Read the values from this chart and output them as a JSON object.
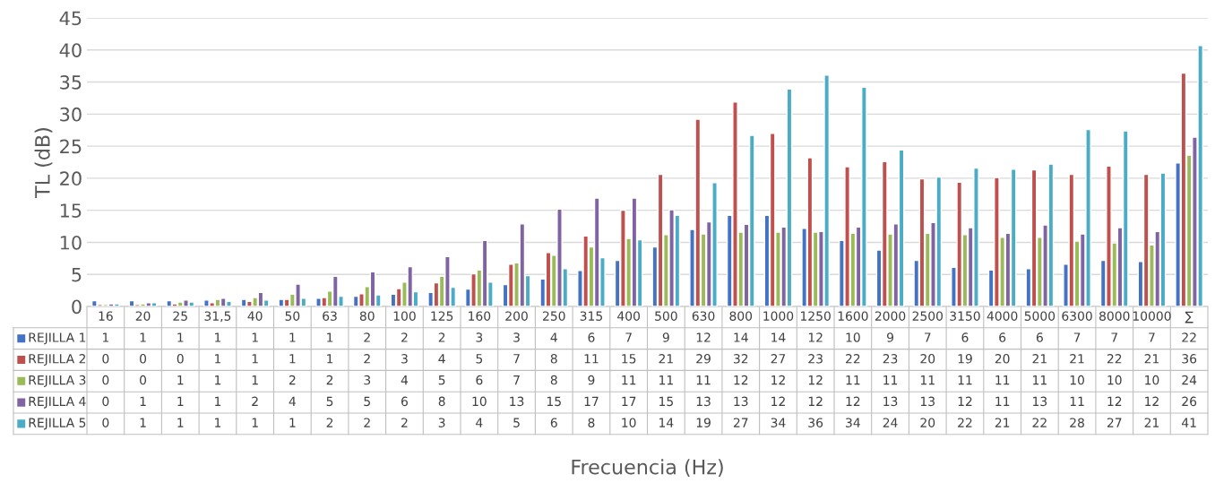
{
  "chart_data": {
    "type": "bar",
    "ylabel": "TL (dB)",
    "annotations": [
      "Frecuencia (Hz)"
    ],
    "categories": [
      "16",
      "20",
      "25",
      "31,5",
      "40",
      "50",
      "63",
      "80",
      "100",
      "125",
      "160",
      "200",
      "250",
      "315",
      "400",
      "500",
      "630",
      "800",
      "1000",
      "1250",
      "1600",
      "2000",
      "2500",
      "3150",
      "4000",
      "5000",
      "6300",
      "8000",
      "10000",
      "∑"
    ],
    "series": [
      {
        "name": "REJILLA 1",
        "color": "#4472c4",
        "values": [
          0.9,
          0.9,
          0.9,
          1.0,
          1.1,
          1.1,
          1.3,
          1.6,
          1.9,
          2.2,
          2.7,
          3.4,
          4.3,
          5.6,
          7.2,
          9.3,
          12.0,
          14.2,
          14.2,
          12.2,
          10.3,
          8.8,
          7.2,
          6.1,
          5.7,
          5.9,
          6.6,
          7.2,
          7.0,
          22.4
        ],
        "value_labels": [
          "1",
          "1",
          "1",
          "1",
          "1",
          "1",
          "1",
          "2",
          "2",
          "2",
          "3",
          "3",
          "4",
          "6",
          "7",
          "9",
          "12",
          "14",
          "14",
          "12",
          "10",
          "9",
          "7",
          "6",
          "6",
          "6",
          "7",
          "7",
          "7",
          "22"
        ]
      },
      {
        "name": "REJILLA 2",
        "color": "#c0504d",
        "values": [
          0.3,
          0.3,
          0.4,
          0.6,
          0.8,
          1.1,
          1.4,
          2.0,
          2.8,
          3.7,
          5.1,
          6.6,
          8.4,
          11.0,
          15.0,
          20.6,
          29.2,
          31.9,
          27.0,
          23.2,
          21.8,
          22.6,
          19.9,
          19.4,
          20.1,
          21.3,
          20.6,
          21.9,
          20.6,
          36.4
        ],
        "value_labels": [
          "0",
          "0",
          "0",
          "1",
          "1",
          "1",
          "1",
          "2",
          "3",
          "4",
          "5",
          "7",
          "8",
          "11",
          "15",
          "21",
          "29",
          "32",
          "27",
          "23",
          "22",
          "23",
          "20",
          "19",
          "20",
          "21",
          "21",
          "22",
          "21",
          "36"
        ]
      },
      {
        "name": "REJILLA 3",
        "color": "#9bbb59",
        "values": [
          0.3,
          0.4,
          0.7,
          1.1,
          1.4,
          1.9,
          2.4,
          3.1,
          3.8,
          4.7,
          5.7,
          6.8,
          8.0,
          9.3,
          10.6,
          11.2,
          11.3,
          11.6,
          11.6,
          11.6,
          11.4,
          11.3,
          11.4,
          11.2,
          10.8,
          10.8,
          10.2,
          9.9,
          9.6,
          23.6
        ],
        "value_labels": [
          "0",
          "0",
          "1",
          "1",
          "1",
          "2",
          "2",
          "3",
          "4",
          "5",
          "6",
          "7",
          "8",
          "9",
          "11",
          "11",
          "11",
          "12",
          "12",
          "12",
          "11",
          "11",
          "11",
          "11",
          "11",
          "11",
          "10",
          "10",
          "10",
          "24"
        ]
      },
      {
        "name": "REJILLA 4",
        "color": "#8064a2",
        "values": [
          0.4,
          0.6,
          1.0,
          1.3,
          2.2,
          3.5,
          4.7,
          5.4,
          6.2,
          7.8,
          10.3,
          12.9,
          15.2,
          16.9,
          16.9,
          15.1,
          13.2,
          12.8,
          12.4,
          11.7,
          12.4,
          12.9,
          13.1,
          12.3,
          11.4,
          12.7,
          11.3,
          12.3,
          11.7,
          26.4
        ],
        "value_labels": [
          "0",
          "1",
          "1",
          "1",
          "2",
          "4",
          "5",
          "5",
          "6",
          "8",
          "10",
          "13",
          "15",
          "17",
          "17",
          "15",
          "13",
          "13",
          "12",
          "12",
          "12",
          "13",
          "13",
          "12",
          "11",
          "13",
          "11",
          "12",
          "12",
          "26"
        ]
      },
      {
        "name": "REJILLA 5",
        "color": "#4bacc6",
        "values": [
          0.4,
          0.6,
          0.7,
          0.8,
          1.0,
          1.3,
          1.6,
          1.8,
          2.3,
          3.0,
          3.8,
          4.8,
          5.9,
          7.6,
          10.4,
          14.2,
          19.3,
          26.7,
          33.9,
          36.1,
          34.2,
          24.4,
          20.2,
          21.6,
          21.4,
          22.2,
          27.6,
          27.4,
          20.8,
          40.7
        ],
        "value_labels": [
          "0",
          "1",
          "1",
          "1",
          "1",
          "1",
          "2",
          "2",
          "2",
          "3",
          "4",
          "5",
          "6",
          "8",
          "10",
          "14",
          "19",
          "27",
          "34",
          "36",
          "34",
          "24",
          "20",
          "22",
          "21",
          "22",
          "28",
          "27",
          "21",
          "41"
        ]
      }
    ],
    "ylim": [
      0,
      45
    ],
    "yticks": [
      0,
      5,
      10,
      15,
      20,
      25,
      30,
      35,
      40,
      45
    ],
    "grid": "y",
    "legend": "bottom left"
  }
}
